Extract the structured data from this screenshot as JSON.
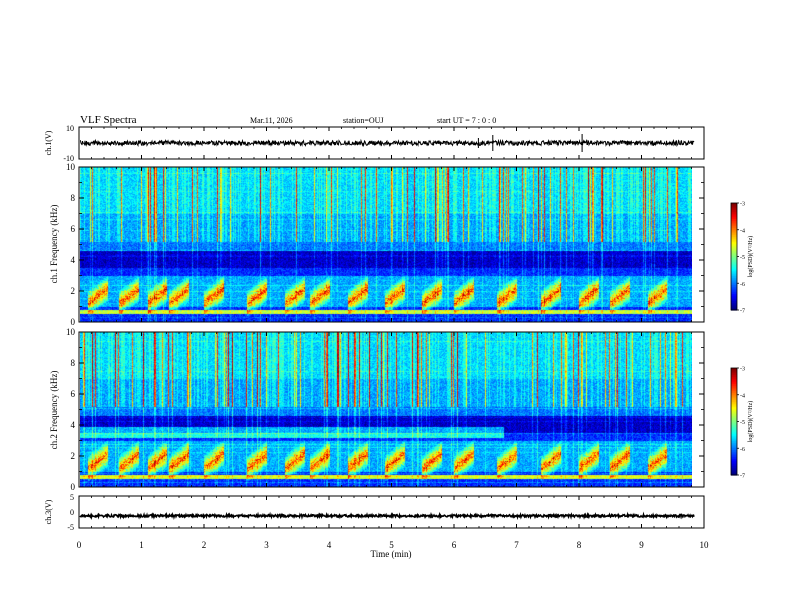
{
  "header": {
    "title": "VLF Spectra",
    "date": "Mar.11, 2026",
    "station": "station=OUJ",
    "start": "start UT =  7 : 0  : 0"
  },
  "colorbar": {
    "label": "log(PSD)(V²/Hz)",
    "ticks": [
      -3,
      -4,
      -5,
      -6,
      -7
    ],
    "colors": [
      "#00007f",
      "#0000ff",
      "#007fff",
      "#00ffff",
      "#7fff7f",
      "#ffff00",
      "#ff7f00",
      "#ff0000",
      "#7f0000",
      "#ffffff"
    ]
  },
  "chart_data": [
    {
      "type": "line",
      "title": "ch.1(V)",
      "ylabel": "ch.1(V)",
      "ylim": [
        -10,
        10
      ],
      "yticks": [
        10,
        -10
      ],
      "xlim": [
        0,
        10
      ],
      "series": [
        {
          "name": "ch.1 waveform",
          "approx_level": 0,
          "approx_amplitude": 1.5
        }
      ]
    },
    {
      "type": "heatmap",
      "title": "ch.1 spectrogram",
      "ylabel": "ch.1 Frequency (kHz)",
      "ylim": [
        0,
        10
      ],
      "yticks": [
        0,
        2,
        4,
        6,
        8,
        10
      ],
      "xlim": [
        0,
        10
      ],
      "zlim": [
        -7,
        -3
      ],
      "bursts_min": [
        0.25,
        0.75,
        1.2,
        1.55,
        2.1,
        2.8,
        3.4,
        3.8,
        4.4,
        5.0,
        5.6,
        6.1,
        6.8,
        7.5,
        8.1,
        8.6,
        9.2
      ]
    },
    {
      "type": "heatmap",
      "title": "ch.2 spectrogram",
      "ylabel": "ch.2 Frequency (kHz)",
      "ylim": [
        0,
        10
      ],
      "yticks": [
        0,
        2,
        4,
        6,
        8,
        10
      ],
      "xlim": [
        0,
        10
      ],
      "zlim": [
        -7,
        -3
      ],
      "bursts_min": [
        0.25,
        0.75,
        1.2,
        1.55,
        2.1,
        2.8,
        3.4,
        3.8,
        4.4,
        5.0,
        5.6,
        6.1,
        6.8,
        7.5,
        8.1,
        8.6,
        9.2
      ]
    },
    {
      "type": "line",
      "title": "ch.3(V)",
      "ylabel": "ch.3(V)",
      "ylim": [
        -5,
        5
      ],
      "yticks": [
        5,
        0,
        -5
      ],
      "xlim": [
        0,
        10
      ],
      "series": [
        {
          "name": "ch.3 waveform",
          "approx_level": -1.2,
          "approx_amplitude": 0.3
        }
      ]
    }
  ],
  "xaxis": {
    "label": "Time (min)",
    "ticks": [
      0,
      1,
      2,
      3,
      4,
      5,
      6,
      7,
      8,
      9,
      10
    ],
    "data_end": 9.83
  }
}
